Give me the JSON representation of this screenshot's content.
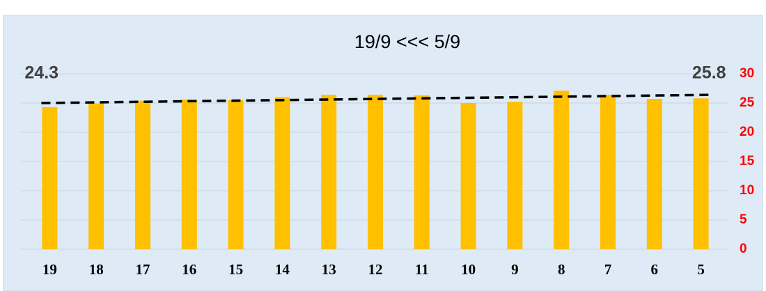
{
  "chart_data": {
    "type": "bar",
    "title": "19/9 <<<  5/9",
    "categories": [
      "19",
      "18",
      "17",
      "16",
      "15",
      "14",
      "13",
      "12",
      "11",
      "10",
      "9",
      "8",
      "7",
      "6",
      "5"
    ],
    "values": [
      24.3,
      24.9,
      25.4,
      25.6,
      25.5,
      26.0,
      26.4,
      26.4,
      26.3,
      25.0,
      25.2,
      27.1,
      26.4,
      25.7,
      25.8
    ],
    "value_labels": [
      "24.3",
      null,
      null,
      null,
      null,
      null,
      null,
      null,
      null,
      null,
      null,
      null,
      null,
      null,
      "25.8"
    ],
    "color": "#ffc000",
    "ylim": [
      0,
      30
    ],
    "yticks": [
      0,
      5,
      10,
      15,
      20,
      25,
      30
    ],
    "grid": true,
    "y_axis_side": "right",
    "trendline": {
      "start": 25.0,
      "end": 26.4,
      "color": "#000000",
      "style": "dashed"
    }
  }
}
